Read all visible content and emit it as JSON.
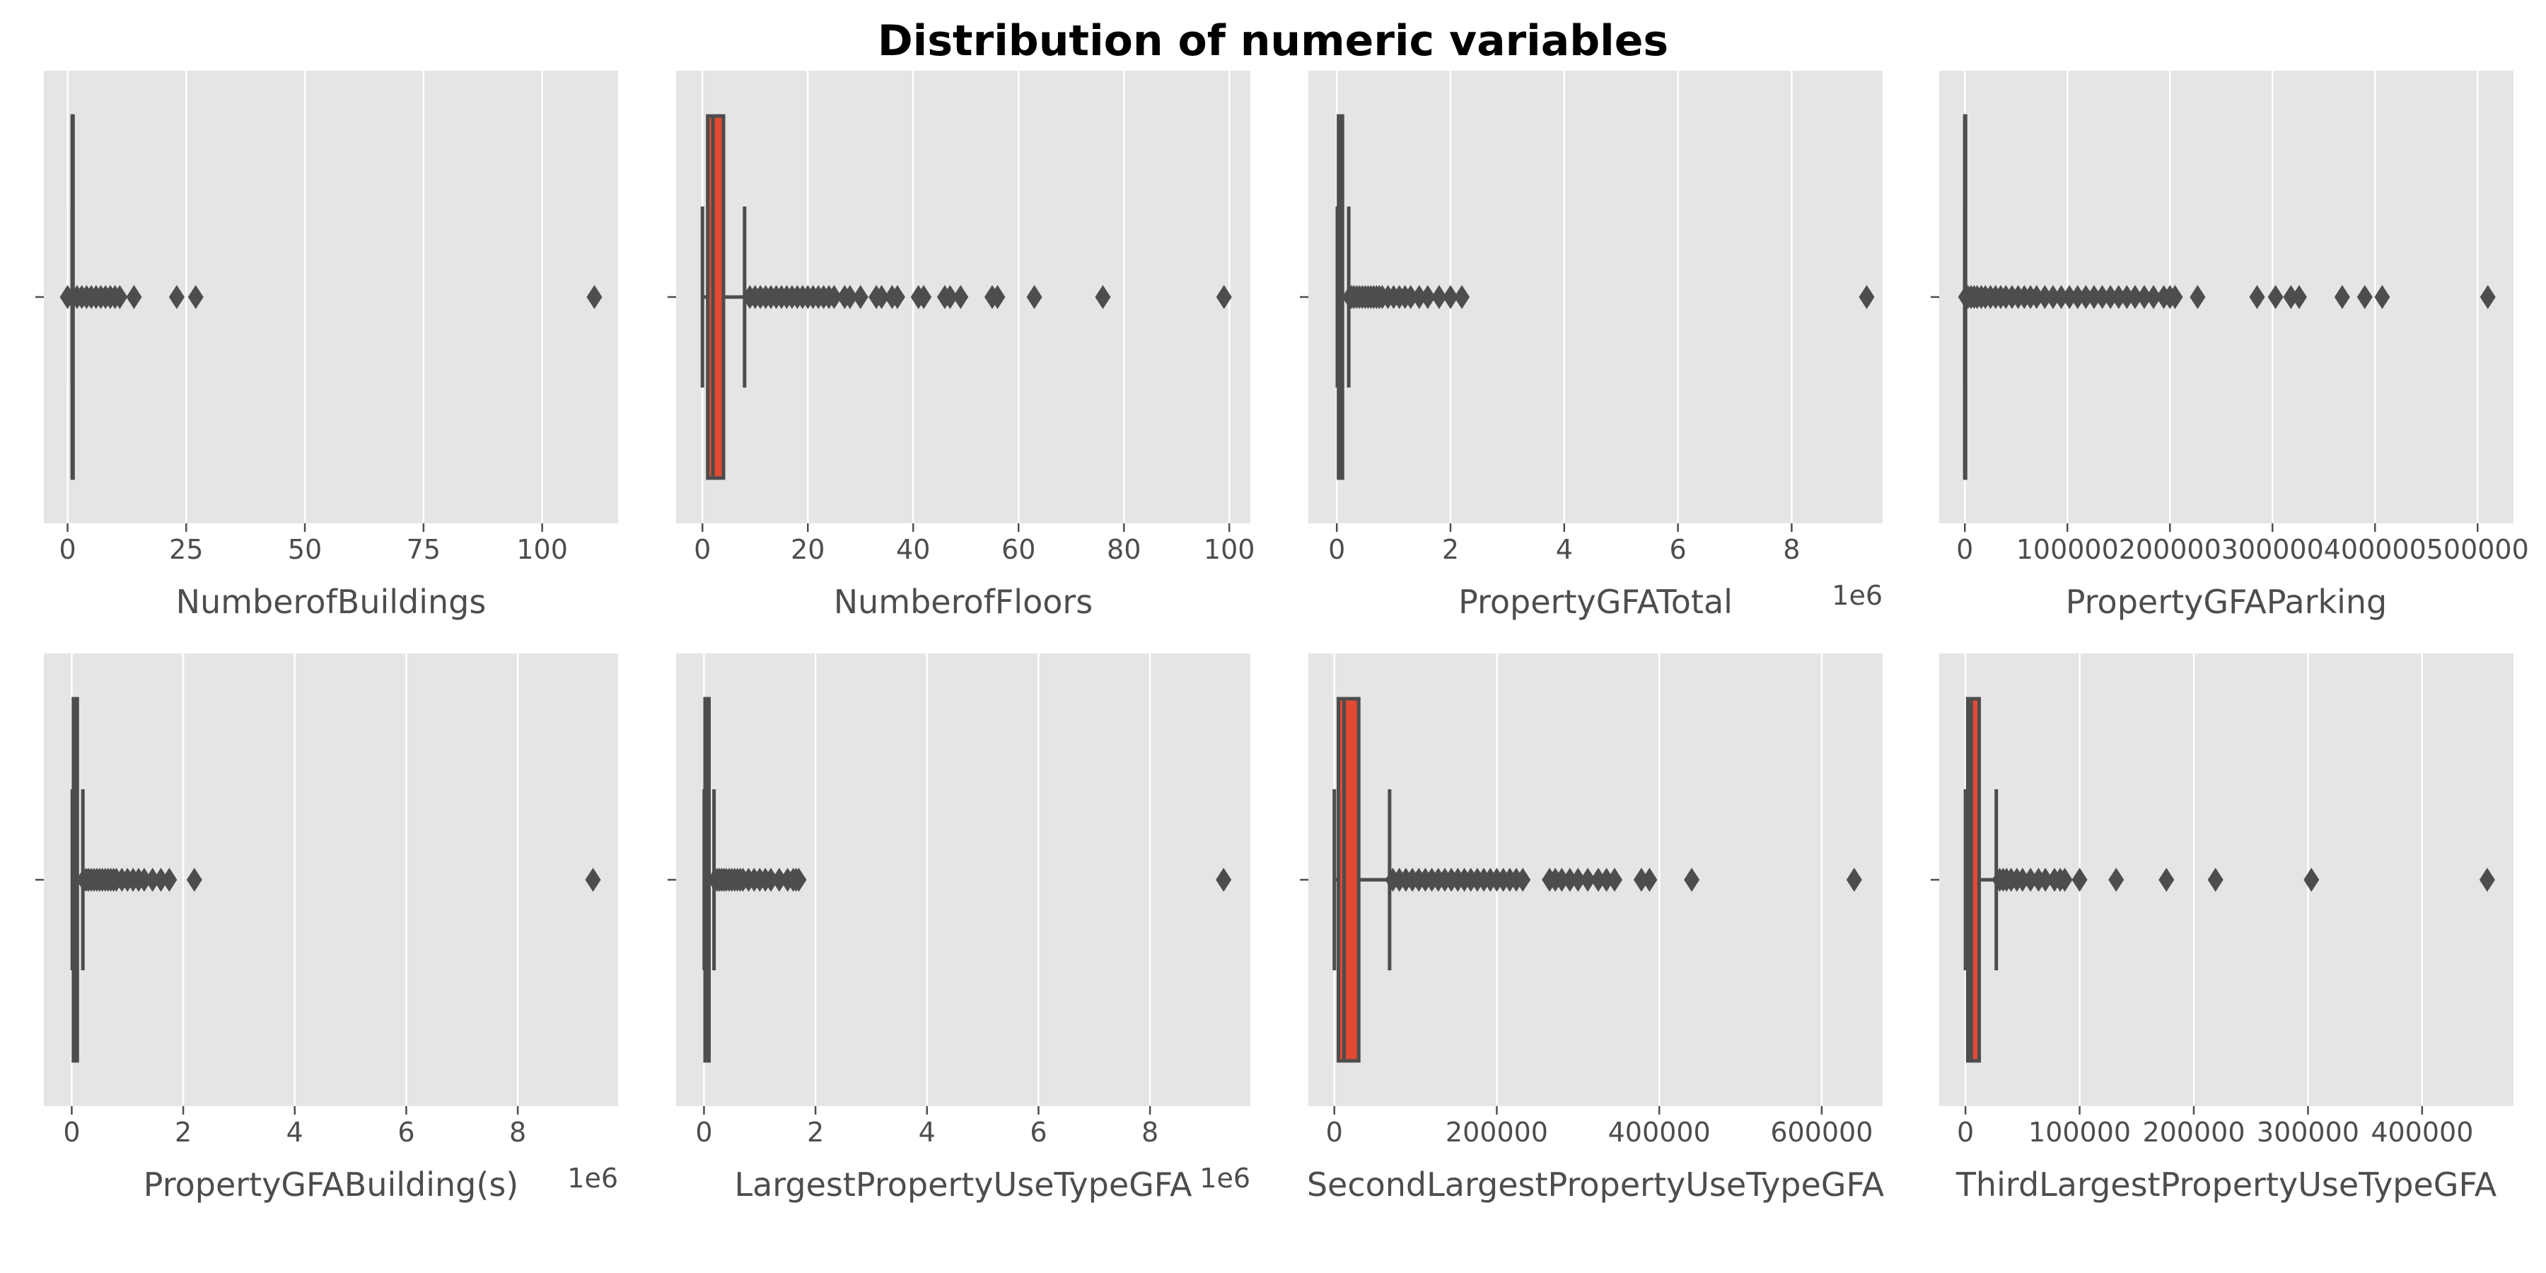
{
  "figure": {
    "title": "Distribution of numeric variables"
  },
  "style": {
    "panel_bg": "#e5e5e5",
    "grid_color": "#ffffff",
    "box_fill": "#e24a33",
    "line_color": "#4d4d4d",
    "tick_color": "#4d4d4d"
  },
  "chart_data": [
    {
      "type": "boxplot",
      "orientation": "horizontal",
      "xlabel": "NumberofBuildings",
      "offset_label": "",
      "xlim": [
        -5,
        116
      ],
      "ticks": [
        0,
        25,
        50,
        75,
        100
      ],
      "tick_labels": [
        "0",
        "25",
        "50",
        "75",
        "100"
      ],
      "box": {
        "q1": 1,
        "median": 1,
        "q3": 1,
        "whisker_low": 1,
        "whisker_high": 1
      },
      "outliers": [
        0,
        2,
        3,
        4,
        5,
        6,
        7,
        8,
        9,
        10,
        11,
        14,
        23,
        27,
        111
      ]
    },
    {
      "type": "boxplot",
      "orientation": "horizontal",
      "xlabel": "NumberofFloors",
      "offset_label": "",
      "xlim": [
        -5,
        104
      ],
      "ticks": [
        0,
        20,
        40,
        60,
        80,
        100
      ],
      "tick_labels": [
        "0",
        "20",
        "40",
        "60",
        "80",
        "100"
      ],
      "box": {
        "q1": 1,
        "median": 2,
        "q3": 4,
        "whisker_low": 0,
        "whisker_high": 8
      },
      "outliers": [
        9,
        10,
        11,
        12,
        13,
        14,
        15,
        16,
        17,
        18,
        19,
        20,
        21,
        22,
        23,
        24,
        25,
        27,
        28,
        30,
        33,
        34,
        36,
        37,
        41,
        42,
        46,
        47,
        49,
        55,
        56,
        63,
        76,
        99
      ]
    },
    {
      "type": "boxplot",
      "orientation": "horizontal",
      "xlabel": "PropertyGFATotal",
      "offset_label": "1e6",
      "xlim": [
        -0.5,
        9.6
      ],
      "ticks": [
        0,
        2,
        4,
        6,
        8
      ],
      "tick_labels": [
        "0",
        "2",
        "4",
        "6",
        "8"
      ],
      "box": {
        "q1": 0.03,
        "median": 0.05,
        "q3": 0.1,
        "whisker_low": 0.01,
        "whisker_high": 0.21
      },
      "outliers": [
        0.23,
        0.26,
        0.3,
        0.35,
        0.4,
        0.45,
        0.5,
        0.55,
        0.6,
        0.65,
        0.7,
        0.75,
        0.8,
        0.9,
        1.0,
        1.1,
        1.2,
        1.3,
        1.45,
        1.6,
        1.8,
        2.0,
        2.2,
        9.32
      ]
    },
    {
      "type": "boxplot",
      "orientation": "horizontal",
      "xlabel": "PropertyGFAParking",
      "offset_label": "",
      "xlim": [
        -25000,
        535000
      ],
      "ticks": [
        0,
        100000,
        200000,
        300000,
        400000,
        500000
      ],
      "tick_labels": [
        "0",
        "100000",
        "200000",
        "300000",
        "400000",
        "500000"
      ],
      "box": {
        "q1": 0,
        "median": 0,
        "q3": 0,
        "whisker_low": 0,
        "whisker_high": 0
      },
      "outliers": [
        1000,
        3000,
        6000,
        9000,
        12000,
        16000,
        20000,
        25000,
        30000,
        35000,
        40000,
        46000,
        52000,
        58000,
        64000,
        70000,
        78000,
        86000,
        94000,
        102000,
        110000,
        118000,
        126000,
        134000,
        142000,
        150000,
        158000,
        166000,
        175000,
        184000,
        194000,
        200000,
        205000,
        227000,
        285000,
        303000,
        318000,
        326000,
        368000,
        390000,
        407000,
        510000
      ]
    },
    {
      "type": "boxplot",
      "orientation": "horizontal",
      "xlabel": "PropertyGFABuilding(s)",
      "offset_label": "1e6",
      "xlim": [
        -0.5,
        9.8
      ],
      "ticks": [
        0,
        2,
        4,
        6,
        8
      ],
      "tick_labels": [
        "0",
        "2",
        "4",
        "6",
        "8"
      ],
      "box": {
        "q1": 0.03,
        "median": 0.05,
        "q3": 0.1,
        "whisker_low": 0.01,
        "whisker_high": 0.2
      },
      "outliers": [
        0.22,
        0.26,
        0.3,
        0.35,
        0.4,
        0.45,
        0.5,
        0.55,
        0.6,
        0.65,
        0.7,
        0.75,
        0.8,
        0.9,
        1.0,
        1.1,
        1.2,
        1.3,
        1.45,
        1.6,
        1.75,
        2.2,
        9.35
      ]
    },
    {
      "type": "boxplot",
      "orientation": "horizontal",
      "xlabel": "LargestPropertyUseTypeGFA",
      "offset_label": "1e6",
      "xlim": [
        -0.5,
        9.8
      ],
      "ticks": [
        0,
        2,
        4,
        6,
        8
      ],
      "tick_labels": [
        "0",
        "2",
        "4",
        "6",
        "8"
      ],
      "box": {
        "q1": 0.02,
        "median": 0.04,
        "q3": 0.09,
        "whisker_low": 0.005,
        "whisker_high": 0.18
      },
      "outliers": [
        0.2,
        0.24,
        0.28,
        0.32,
        0.36,
        0.4,
        0.45,
        0.5,
        0.55,
        0.6,
        0.65,
        0.7,
        0.8,
        0.9,
        1.0,
        1.1,
        1.2,
        1.35,
        1.5,
        1.6,
        1.65,
        1.7,
        9.32
      ]
    },
    {
      "type": "boxplot",
      "orientation": "horizontal",
      "xlabel": "SecondLargestPropertyUseTypeGFA",
      "offset_label": "",
      "xlim": [
        -32000,
        675000
      ],
      "ticks": [
        0,
        200000,
        400000,
        600000
      ],
      "tick_labels": [
        "0",
        "200000",
        "400000",
        "600000"
      ],
      "box": {
        "q1": 5000,
        "median": 12000,
        "q3": 30000,
        "whisker_low": 0,
        "whisker_high": 68000
      },
      "outliers": [
        72000,
        80000,
        88000,
        96000,
        104000,
        112000,
        120000,
        128000,
        136000,
        144000,
        152000,
        160000,
        168000,
        176000,
        184000,
        192000,
        200000,
        208000,
        216000,
        224000,
        232000,
        265000,
        272000,
        280000,
        290000,
        300000,
        312000,
        325000,
        335000,
        345000,
        378000,
        388000,
        440000,
        640000
      ]
    },
    {
      "type": "boxplot",
      "orientation": "horizontal",
      "xlabel": "ThirdLargestPropertyUseTypeGFA",
      "offset_label": "",
      "xlim": [
        -23000,
        480000
      ],
      "ticks": [
        0,
        100000,
        200000,
        300000,
        400000
      ],
      "tick_labels": [
        "0",
        "100000",
        "200000",
        "300000",
        "400000"
      ],
      "box": {
        "q1": 2000,
        "median": 5000,
        "q3": 12000,
        "whisker_low": 0,
        "whisker_high": 27000
      },
      "outliers": [
        30000,
        33000,
        36000,
        40000,
        45000,
        50000,
        57000,
        64000,
        70000,
        78000,
        83000,
        87000,
        100000,
        132000,
        176000,
        219000,
        303000,
        457000
      ]
    }
  ]
}
